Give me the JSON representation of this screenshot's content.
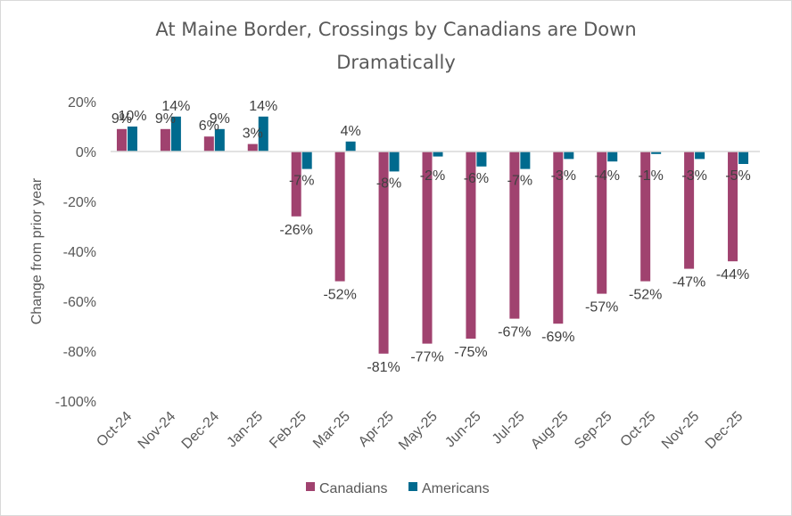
{
  "chart_data": {
    "type": "bar",
    "title_lines": [
      "At Maine Border, Crossings by Canadians are Down",
      "Dramatically"
    ],
    "title": "At Maine Border, Crossings by Canadians are Down Dramatically",
    "xlabel": "",
    "ylabel": "Change from prior year",
    "ylim": [
      -100,
      20
    ],
    "yticks": [
      20,
      0,
      -20,
      -40,
      -60,
      -80,
      -100
    ],
    "ytick_labels": [
      "20%",
      "0%",
      "-20%",
      "-40%",
      "-60%",
      "-80%",
      "-100%"
    ],
    "grid": false,
    "legend_position": "bottom",
    "categories": [
      "Oct-24",
      "Nov-24",
      "Dec-24",
      "Jan-25",
      "Feb-25",
      "Mar-25",
      "Apr-25",
      "May-25",
      "Jun-25",
      "Jul-25",
      "Aug-25",
      "Sep-25",
      "Oct-25",
      "Nov-25",
      "Dec-25"
    ],
    "series": [
      {
        "name": "Canadians",
        "color": "#A0426F",
        "values": [
          9,
          9,
          6,
          3,
          -26,
          -52,
          -81,
          -77,
          -75,
          -67,
          -69,
          -57,
          -52,
          -47,
          -44
        ],
        "labels": [
          "9%",
          "9%",
          "6%",
          "3%",
          "-26%",
          "-52%",
          "-81%",
          "-77%",
          "-75%",
          "-67%",
          "-69%",
          "-57%",
          "-52%",
          "-47%",
          "-44%"
        ]
      },
      {
        "name": "Americans",
        "color": "#006A8E",
        "values": [
          10,
          14,
          9,
          14,
          -7,
          4,
          -8,
          -2,
          -6,
          -7,
          -3,
          -4,
          -1,
          -3,
          -5
        ],
        "labels": [
          "10%",
          "14%",
          "9%",
          "14%",
          "-7%",
          "4%",
          "-8%",
          "-2%",
          "-6%",
          "-7%",
          "-3%",
          "-4%",
          "-1%",
          "-3%",
          "-5%"
        ]
      }
    ]
  }
}
